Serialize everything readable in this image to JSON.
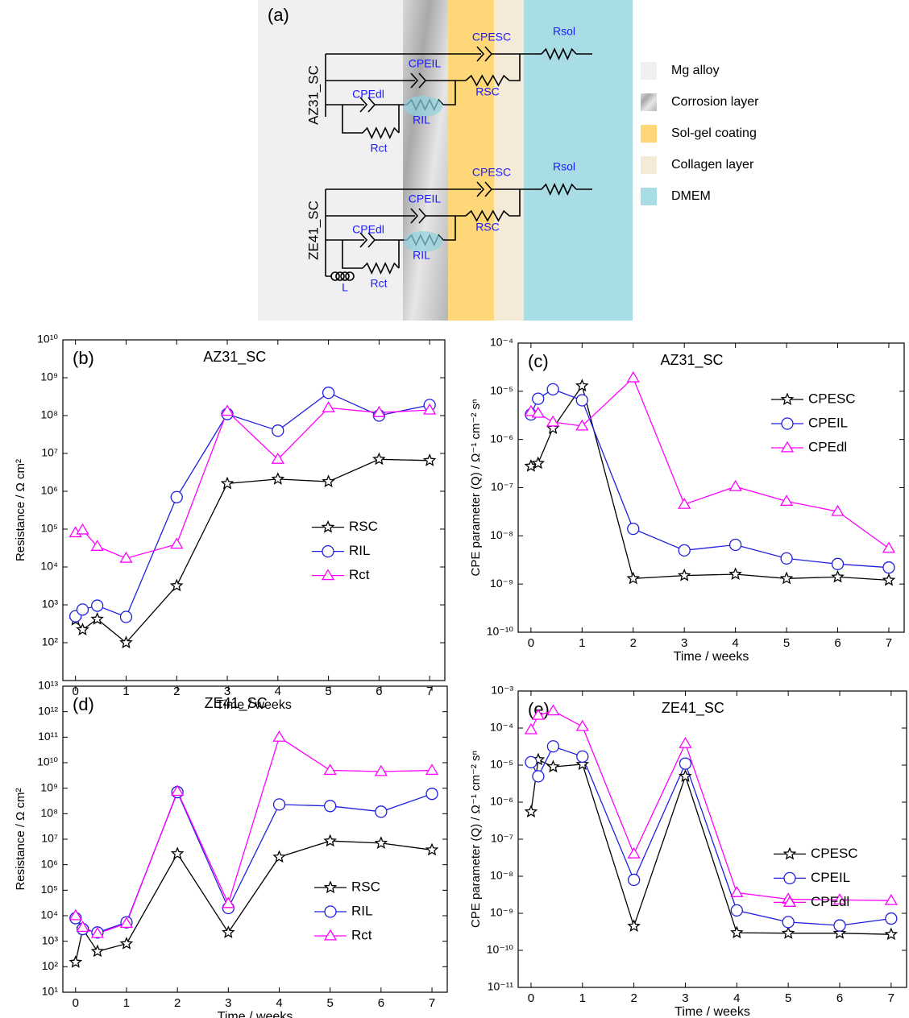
{
  "diagram": {
    "label": "(a)",
    "circuits": [
      {
        "name": "AZ31_SC",
        "labels": [
          "CPESC",
          "Rsol",
          "CPEIL",
          "RSC",
          "CPEdl",
          "RIL",
          "Rct"
        ]
      },
      {
        "name": "ZE41_SC",
        "labels": [
          "CPESC",
          "Rsol",
          "CPEIL",
          "RSC",
          "CPEdl",
          "RIL",
          "Rct",
          "L"
        ]
      }
    ],
    "legend": [
      "Mg alloy",
      "Corrosion layer",
      "Sol-gel coating",
      "Collagen layer",
      "DMEM"
    ]
  },
  "chart_data": [
    {
      "type": "line",
      "panel": "(b)",
      "title": "AZ31_SC",
      "x_label": "Time / weeks",
      "y_label": "Resistance / Ω cm²",
      "log_y": true,
      "legend": "center right",
      "x": [
        0,
        0.14,
        0.43,
        1,
        2,
        3,
        4,
        5,
        6,
        7
      ],
      "xlim": [
        -0.25,
        7.3
      ],
      "xticks": [
        0,
        1,
        2,
        3,
        4,
        5,
        6,
        7
      ],
      "ylim": [
        10,
        10000000000
      ],
      "yticks": [
        {
          "value": 100,
          "label": "10²"
        },
        {
          "value": 1000,
          "label": "10³"
        },
        {
          "value": 10000,
          "label": "10⁴"
        },
        {
          "value": 100000,
          "label": "10⁵"
        },
        {
          "value": 1000000,
          "label": "10⁶"
        },
        {
          "value": 10000000,
          "label": "10⁷"
        },
        {
          "value": 100000000,
          "label": "10⁸"
        },
        {
          "value": 1000000000,
          "label": "10⁹"
        },
        {
          "value": 10000000000,
          "label": "10¹⁰"
        }
      ],
      "series": [
        {
          "name": "RSC",
          "color": "#000000",
          "marker": "star",
          "values": [
            400,
            220,
            420,
            100,
            3200,
            1600000,
            2100000,
            1800000,
            7000000,
            6500000
          ]
        },
        {
          "name": "RIL",
          "color": "#2020e0",
          "marker": "circle",
          "values": [
            500,
            750,
            950,
            480,
            700000,
            110000000,
            40000000,
            400000000,
            100000000,
            190000000
          ]
        },
        {
          "name": "Rct",
          "color": "#ff00ff",
          "marker": "triangle",
          "values": [
            80000,
            95000,
            35000,
            17000,
            40000,
            130000000,
            7000000,
            160000000,
            120000000,
            140000000
          ]
        }
      ]
    },
    {
      "type": "line",
      "panel": "(c)",
      "title": "AZ31_SC",
      "x_label": "Time / weeks",
      "y_label": "CPE parameter (Q) / Ω⁻¹ cm⁻² sⁿ",
      "log_y": true,
      "legend": "upper right",
      "x": [
        0,
        0.14,
        0.43,
        1,
        2,
        3,
        4,
        5,
        6,
        7
      ],
      "xlim": [
        -0.25,
        7.3
      ],
      "xticks": [
        0,
        1,
        2,
        3,
        4,
        5,
        6,
        7
      ],
      "ylim": [
        1e-10,
        0.0001
      ],
      "yticks": [
        {
          "value": 1e-10,
          "label": "10⁻¹⁰"
        },
        {
          "value": 1e-09,
          "label": "10⁻⁹"
        },
        {
          "value": 1e-08,
          "label": "10⁻⁸"
        },
        {
          "value": 1e-07,
          "label": "10⁻⁷"
        },
        {
          "value": 1e-06,
          "label": "10⁻⁶"
        },
        {
          "value": 1e-05,
          "label": "10⁻⁵"
        },
        {
          "value": 0.0001,
          "label": "10⁻⁴"
        }
      ],
      "series": [
        {
          "name": "CPESC",
          "color": "#000000",
          "marker": "star",
          "values": [
            2.8e-07,
            3.2e-07,
            1.7e-06,
            1.3e-05,
            1.3e-09,
            1.5e-09,
            1.6e-09,
            1.3e-09,
            1.4e-09,
            1.2e-09
          ]
        },
        {
          "name": "CPEIL",
          "color": "#2020e0",
          "marker": "circle",
          "values": [
            3.3e-06,
            7e-06,
            1.1e-05,
            6.5e-06,
            1.4e-08,
            5e-09,
            6.5e-09,
            3.4e-09,
            2.6e-09,
            2.2e-09
          ]
        },
        {
          "name": "CPEdl",
          "color": "#ff00ff",
          "marker": "triangle",
          "values": [
            3.8e-06,
            3.5e-06,
            2.3e-06,
            1.9e-06,
            1.9e-05,
            4.5e-08,
            1.05e-07,
            5.2e-08,
            3.2e-08,
            5.5e-09
          ]
        }
      ]
    },
    {
      "type": "line",
      "panel": "(d)",
      "title": "ZE41_SC",
      "x_label": "Time / weeks",
      "y_label": "Resistance / Ω cm²",
      "log_y": true,
      "legend": "lower right",
      "x": [
        0,
        0.14,
        0.43,
        1,
        2,
        3,
        4,
        5,
        6,
        7
      ],
      "xlim": [
        -0.25,
        7.3
      ],
      "xticks": [
        0,
        1,
        2,
        3,
        4,
        5,
        6,
        7
      ],
      "ylim": [
        10,
        10000000000000
      ],
      "yticks": [
        {
          "value": 10,
          "label": "10¹"
        },
        {
          "value": 100,
          "label": "10²"
        },
        {
          "value": 1000,
          "label": "10³"
        },
        {
          "value": 10000,
          "label": "10⁴"
        },
        {
          "value": 100000,
          "label": "10⁵"
        },
        {
          "value": 1000000,
          "label": "10⁶"
        },
        {
          "value": 10000000,
          "label": "10⁷"
        },
        {
          "value": 100000000,
          "label": "10⁸"
        },
        {
          "value": 1000000000,
          "label": "10⁹"
        },
        {
          "value": 10000000000,
          "label": "10¹⁰"
        },
        {
          "value": 100000000000,
          "label": "10¹¹"
        },
        {
          "value": 1000000000000,
          "label": "10¹²"
        },
        {
          "value": 10000000000000,
          "label": "10¹³"
        }
      ],
      "series": [
        {
          "name": "RSC",
          "color": "#000000",
          "marker": "star",
          "values": [
            150,
            3000,
            400,
            800,
            2700000,
            2200,
            2000000,
            8500000,
            7000000,
            3800000
          ]
        },
        {
          "name": "RIL",
          "color": "#2020e0",
          "marker": "circle",
          "values": [
            8000,
            3000,
            2200,
            5500,
            700000000,
            20000,
            230000000,
            200000000,
            120000000,
            600000000
          ]
        },
        {
          "name": "Rct",
          "color": "#ff00ff",
          "marker": "triangle",
          "values": [
            10000,
            3500,
            2000,
            5000,
            750000000,
            30000,
            100000000000,
            5000000000,
            4500000000,
            5000000000
          ]
        }
      ]
    },
    {
      "type": "line",
      "panel": "(e)",
      "title": "ZE41_SC",
      "x_label": "Time / weeks",
      "y_label": "CPE parameter (Q) / Ω⁻¹ cm⁻² sⁿ",
      "log_y": true,
      "legend": "center right",
      "x": [
        0,
        0.14,
        0.43,
        1,
        2,
        3,
        4,
        5,
        6,
        7
      ],
      "xlim": [
        -0.25,
        7.3
      ],
      "xticks": [
        0,
        1,
        2,
        3,
        4,
        5,
        6,
        7
      ],
      "ylim": [
        1e-11,
        0.001
      ],
      "yticks": [
        {
          "value": 1e-11,
          "label": "10⁻¹¹"
        },
        {
          "value": 1e-10,
          "label": "10⁻¹⁰"
        },
        {
          "value": 1e-09,
          "label": "10⁻⁹"
        },
        {
          "value": 1e-08,
          "label": "10⁻⁸"
        },
        {
          "value": 1e-07,
          "label": "10⁻⁷"
        },
        {
          "value": 1e-06,
          "label": "10⁻⁶"
        },
        {
          "value": 1e-05,
          "label": "10⁻⁵"
        },
        {
          "value": 0.0001,
          "label": "10⁻⁴"
        },
        {
          "value": 0.001,
          "label": "10⁻³"
        }
      ],
      "series": [
        {
          "name": "CPESC",
          "color": "#000000",
          "marker": "star",
          "values": [
            5.5e-07,
            1.4e-05,
            9e-06,
            1.05e-05,
            4.5e-10,
            5e-06,
            3e-10,
            2.9e-10,
            2.9e-10,
            2.7e-10
          ]
        },
        {
          "name": "CPEIL",
          "color": "#2020e0",
          "marker": "circle",
          "values": [
            1.2e-05,
            5e-06,
            3.2e-05,
            1.7e-05,
            8e-09,
            1.1e-05,
            1.2e-09,
            5.8e-10,
            4.7e-10,
            7.2e-10
          ]
        },
        {
          "name": "CPEdl",
          "color": "#ff00ff",
          "marker": "triangle",
          "values": [
            9e-05,
            0.00022,
            0.00029,
            0.00011,
            4e-08,
            3.8e-05,
            3.6e-09,
            2.4e-09,
            2.3e-09,
            2.2e-09
          ]
        }
      ]
    }
  ]
}
